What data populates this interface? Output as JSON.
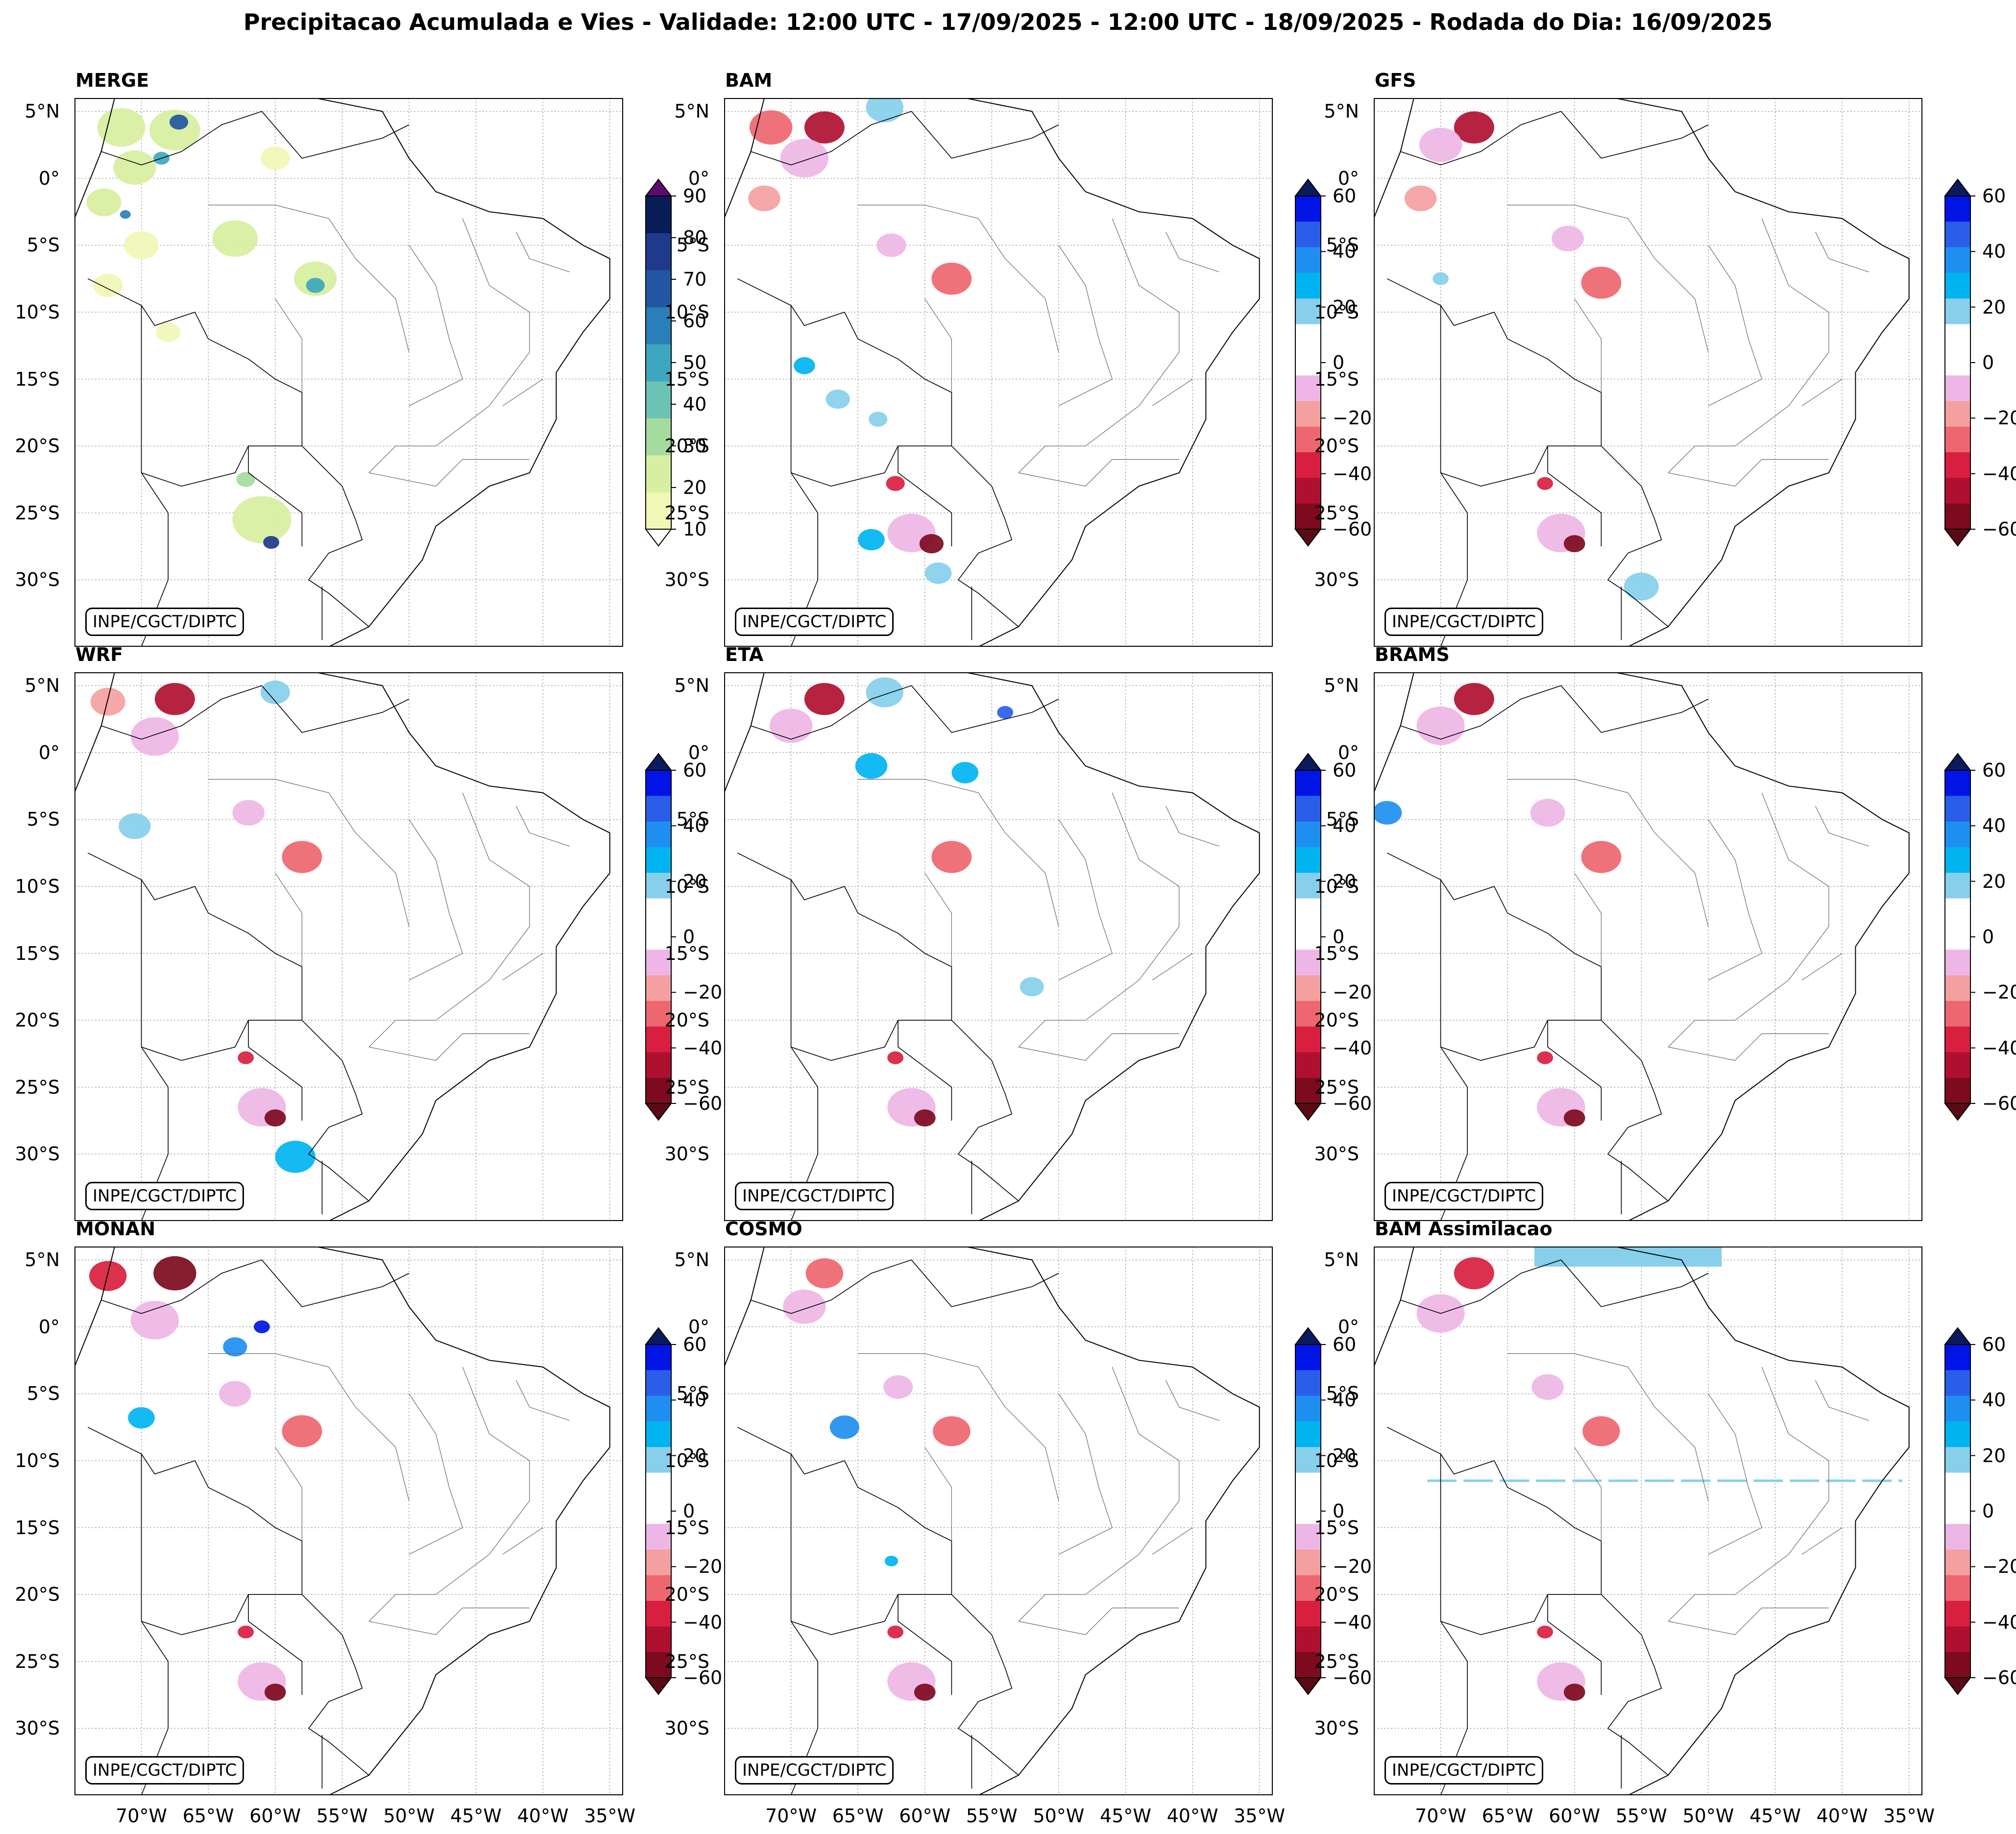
{
  "title": "Precipitacao Acumulada e Vies - Validade: 12:00 UTC - 17/09/2025 - 12:00 UTC - 18/09/2025 - Rodada do Dia: 16/09/2025",
  "credit": "INPE/CGCT/DIPTC",
  "lat_labels": [
    "5°N",
    "0°",
    "5°S",
    "10°S",
    "15°S",
    "20°S",
    "25°S",
    "30°S"
  ],
  "lat_values": [
    5,
    0,
    -5,
    -10,
    -15,
    -20,
    -25,
    -30
  ],
  "lon_labels": [
    "70°W",
    "65°W",
    "60°W",
    "55°W",
    "50°W",
    "45°W",
    "40°W",
    "35°W"
  ],
  "lon_values": [
    -70,
    -65,
    -60,
    -55,
    -50,
    -45,
    -40,
    -35
  ],
  "map_extent": {
    "lon_min": -75,
    "lon_max": -34,
    "lat_min": -35,
    "lat_max": 6
  },
  "colorbars": {
    "merge": {
      "ticks": [
        "10",
        "20",
        "30",
        "40",
        "50",
        "60",
        "70",
        "80",
        "90"
      ],
      "colors": [
        "#f1f7b5",
        "#d7efa0",
        "#a6dba0",
        "#6cc3b4",
        "#3ea7c0",
        "#2b7fb8",
        "#2256a3",
        "#1f3a8a",
        "#081d58"
      ],
      "arrow_top": "#5e0b6e",
      "arrow_bottom": "#ffffff"
    },
    "bias": {
      "ticks": [
        "60",
        "40",
        "20",
        "0",
        "−20",
        "−40",
        "−60"
      ],
      "colors": [
        "#0014e6",
        "#2a5ee8",
        "#1e8ff0",
        "#00b4f0",
        "#87cfeb",
        "#ffffff",
        "#ffffff",
        "#eeb6e6",
        "#f5a0a0",
        "#ee6670",
        "#d81f3f",
        "#b01030",
        "#7d0a1e"
      ],
      "arrow_top": "#0a1a5c",
      "arrow_bottom": "#5a0a14"
    }
  },
  "panels": [
    {
      "id": "merge",
      "title": "MERGE",
      "colorbar": "merge",
      "blobs": [
        {
          "lon": -71.5,
          "lat": 3.8,
          "r": 1.8,
          "color": "#d7efa0"
        },
        {
          "lon": -67.5,
          "lat": 3.6,
          "r": 1.9,
          "color": "#d7efa0"
        },
        {
          "lon": -67.2,
          "lat": 4.2,
          "r": 0.7,
          "color": "#2256a3"
        },
        {
          "lon": -70.5,
          "lat": 0.8,
          "r": 1.6,
          "color": "#d7efa0"
        },
        {
          "lon": -68.5,
          "lat": 1.5,
          "r": 0.6,
          "color": "#3ea7c0"
        },
        {
          "lon": -72.8,
          "lat": -1.8,
          "r": 1.3,
          "color": "#d7efa0"
        },
        {
          "lon": -71.2,
          "lat": -2.7,
          "r": 0.4,
          "color": "#2b7fb8"
        },
        {
          "lon": -60,
          "lat": 1.5,
          "r": 1.1,
          "color": "#f1f7b5"
        },
        {
          "lon": -63,
          "lat": -4.5,
          "r": 1.7,
          "color": "#d7efa0"
        },
        {
          "lon": -70,
          "lat": -5,
          "r": 1.3,
          "color": "#f1f7b5"
        },
        {
          "lon": -57,
          "lat": -7.5,
          "r": 1.6,
          "color": "#d7efa0"
        },
        {
          "lon": -57,
          "lat": -8,
          "r": 0.7,
          "color": "#3ea7c0"
        },
        {
          "lon": -72.5,
          "lat": -8,
          "r": 1.1,
          "color": "#f1f7b5"
        },
        {
          "lon": -68,
          "lat": -11.5,
          "r": 0.9,
          "color": "#f1f7b5"
        },
        {
          "lon": -61,
          "lat": -25.5,
          "r": 2.2,
          "color": "#d7efa0"
        },
        {
          "lon": -60.3,
          "lat": -27.2,
          "r": 0.6,
          "color": "#1f3a8a"
        },
        {
          "lon": -62.2,
          "lat": -22.5,
          "r": 0.7,
          "color": "#a6dba0"
        }
      ]
    },
    {
      "id": "bam",
      "title": "BAM",
      "colorbar": "bias",
      "blobs": [
        {
          "lon": -71.5,
          "lat": 3.8,
          "r": 1.6,
          "color": "#ee6670"
        },
        {
          "lon": -67.5,
          "lat": 3.8,
          "r": 1.5,
          "color": "#b01030"
        },
        {
          "lon": -69,
          "lat": 1.5,
          "r": 1.8,
          "color": "#eeb6e6"
        },
        {
          "lon": -72,
          "lat": -1.5,
          "r": 1.2,
          "color": "#f5a0a0"
        },
        {
          "lon": -63,
          "lat": 5.3,
          "r": 1.4,
          "color": "#87cfeb"
        },
        {
          "lon": -58,
          "lat": -7.5,
          "r": 1.5,
          "color": "#ee6670"
        },
        {
          "lon": -62.5,
          "lat": -5,
          "r": 1.1,
          "color": "#eeb6e6"
        },
        {
          "lon": -66.5,
          "lat": -16.5,
          "r": 0.9,
          "color": "#87cfeb"
        },
        {
          "lon": -63.5,
          "lat": -18,
          "r": 0.7,
          "color": "#87cfeb"
        },
        {
          "lon": -69,
          "lat": -14,
          "r": 0.8,
          "color": "#00b4f0"
        },
        {
          "lon": -61,
          "lat": -26.5,
          "r": 1.8,
          "color": "#eeb6e6"
        },
        {
          "lon": -59.5,
          "lat": -27.3,
          "r": 0.9,
          "color": "#7d0a1e"
        },
        {
          "lon": -62.2,
          "lat": -22.8,
          "r": 0.7,
          "color": "#d81f3f"
        },
        {
          "lon": -64,
          "lat": -27,
          "r": 1.0,
          "color": "#00b4f0"
        },
        {
          "lon": -59,
          "lat": -29.5,
          "r": 1.0,
          "color": "#87cfeb"
        }
      ]
    },
    {
      "id": "gfs",
      "title": "GFS",
      "colorbar": "bias",
      "blobs": [
        {
          "lon": -67.5,
          "lat": 3.8,
          "r": 1.5,
          "color": "#b01030"
        },
        {
          "lon": -70,
          "lat": 2.5,
          "r": 1.6,
          "color": "#eeb6e6"
        },
        {
          "lon": -71.5,
          "lat": -1.5,
          "r": 1.2,
          "color": "#f5a0a0"
        },
        {
          "lon": -58,
          "lat": -7.8,
          "r": 1.5,
          "color": "#ee6670"
        },
        {
          "lon": -60.5,
          "lat": -4.5,
          "r": 1.2,
          "color": "#eeb6e6"
        },
        {
          "lon": -70,
          "lat": -7.5,
          "r": 0.6,
          "color": "#87cfeb"
        },
        {
          "lon": -61,
          "lat": -26.5,
          "r": 1.8,
          "color": "#eeb6e6"
        },
        {
          "lon": -60,
          "lat": -27.3,
          "r": 0.8,
          "color": "#7d0a1e"
        },
        {
          "lon": -62.2,
          "lat": -22.8,
          "r": 0.6,
          "color": "#d81f3f"
        },
        {
          "lon": -55,
          "lat": -30.5,
          "r": 1.3,
          "color": "#87cfeb"
        }
      ]
    },
    {
      "id": "wrf",
      "title": "WRF",
      "colorbar": "bias",
      "blobs": [
        {
          "lon": -67.5,
          "lat": 4.0,
          "r": 1.5,
          "color": "#b01030"
        },
        {
          "lon": -72.5,
          "lat": 3.8,
          "r": 1.3,
          "color": "#f5a0a0"
        },
        {
          "lon": -69,
          "lat": 1.2,
          "r": 1.8,
          "color": "#eeb6e6"
        },
        {
          "lon": -60,
          "lat": 4.5,
          "r": 1.1,
          "color": "#87cfeb"
        },
        {
          "lon": -58,
          "lat": -7.8,
          "r": 1.5,
          "color": "#ee6670"
        },
        {
          "lon": -62,
          "lat": -4.5,
          "r": 1.2,
          "color": "#eeb6e6"
        },
        {
          "lon": -70.5,
          "lat": -5.5,
          "r": 1.2,
          "color": "#87cfeb"
        },
        {
          "lon": -61,
          "lat": -26.5,
          "r": 1.8,
          "color": "#eeb6e6"
        },
        {
          "lon": -60,
          "lat": -27.3,
          "r": 0.8,
          "color": "#7d0a1e"
        },
        {
          "lon": -62.2,
          "lat": -22.8,
          "r": 0.6,
          "color": "#d81f3f"
        },
        {
          "lon": -58.5,
          "lat": -30.2,
          "r": 1.5,
          "color": "#00b4f0"
        }
      ]
    },
    {
      "id": "eta",
      "title": "ETA",
      "colorbar": "bias",
      "blobs": [
        {
          "lon": -67.5,
          "lat": 4.0,
          "r": 1.5,
          "color": "#b01030"
        },
        {
          "lon": -70,
          "lat": 2.0,
          "r": 1.6,
          "color": "#eeb6e6"
        },
        {
          "lon": -63,
          "lat": 4.5,
          "r": 1.4,
          "color": "#87cfeb"
        },
        {
          "lon": -54,
          "lat": 3.0,
          "r": 0.6,
          "color": "#2a5ee8"
        },
        {
          "lon": -64,
          "lat": -1.0,
          "r": 1.2,
          "color": "#00b4f0"
        },
        {
          "lon": -57,
          "lat": -1.5,
          "r": 1.0,
          "color": "#00b4f0"
        },
        {
          "lon": -58,
          "lat": -7.8,
          "r": 1.5,
          "color": "#ee6670"
        },
        {
          "lon": -52,
          "lat": -17.5,
          "r": 0.9,
          "color": "#87cfeb"
        },
        {
          "lon": -61,
          "lat": -26.5,
          "r": 1.8,
          "color": "#eeb6e6"
        },
        {
          "lon": -60,
          "lat": -27.3,
          "r": 0.8,
          "color": "#7d0a1e"
        },
        {
          "lon": -62.2,
          "lat": -22.8,
          "r": 0.6,
          "color": "#d81f3f"
        }
      ]
    },
    {
      "id": "brams",
      "title": "BRAMS",
      "colorbar": "bias",
      "blobs": [
        {
          "lon": -67.5,
          "lat": 4.0,
          "r": 1.5,
          "color": "#b01030"
        },
        {
          "lon": -70,
          "lat": 2.0,
          "r": 1.8,
          "color": "#eeb6e6"
        },
        {
          "lon": -74,
          "lat": -4.5,
          "r": 1.1,
          "color": "#1e8ff0"
        },
        {
          "lon": -58,
          "lat": -7.8,
          "r": 1.5,
          "color": "#ee6670"
        },
        {
          "lon": -62,
          "lat": -4.5,
          "r": 1.3,
          "color": "#eeb6e6"
        },
        {
          "lon": -61,
          "lat": -26.5,
          "r": 1.8,
          "color": "#eeb6e6"
        },
        {
          "lon": -60,
          "lat": -27.3,
          "r": 0.8,
          "color": "#7d0a1e"
        },
        {
          "lon": -62.2,
          "lat": -22.8,
          "r": 0.6,
          "color": "#d81f3f"
        }
      ]
    },
    {
      "id": "monan",
      "title": "MONAN",
      "colorbar": "bias",
      "blobs": [
        {
          "lon": -67.5,
          "lat": 4.0,
          "r": 1.6,
          "color": "#7d0a1e"
        },
        {
          "lon": -72.5,
          "lat": 3.8,
          "r": 1.4,
          "color": "#d81f3f"
        },
        {
          "lon": -69,
          "lat": 0.5,
          "r": 1.8,
          "color": "#eeb6e6"
        },
        {
          "lon": -63,
          "lat": -1.5,
          "r": 0.9,
          "color": "#1e8ff0"
        },
        {
          "lon": -61,
          "lat": 0.0,
          "r": 0.6,
          "color": "#0014e6"
        },
        {
          "lon": -58,
          "lat": -7.8,
          "r": 1.5,
          "color": "#ee6670"
        },
        {
          "lon": -63,
          "lat": -5.0,
          "r": 1.2,
          "color": "#eeb6e6"
        },
        {
          "lon": -70,
          "lat": -6.8,
          "r": 1.0,
          "color": "#00b4f0"
        },
        {
          "lon": -61,
          "lat": -26.5,
          "r": 1.8,
          "color": "#eeb6e6"
        },
        {
          "lon": -60,
          "lat": -27.3,
          "r": 0.8,
          "color": "#7d0a1e"
        },
        {
          "lon": -62.2,
          "lat": -22.8,
          "r": 0.6,
          "color": "#d81f3f"
        }
      ]
    },
    {
      "id": "cosmo",
      "title": "COSMO",
      "colorbar": "bias",
      "blobs": [
        {
          "lon": -67.5,
          "lat": 4.0,
          "r": 1.4,
          "color": "#ee6670"
        },
        {
          "lon": -69,
          "lat": 1.5,
          "r": 1.6,
          "color": "#eeb6e6"
        },
        {
          "lon": -66,
          "lat": -7.5,
          "r": 1.1,
          "color": "#1e8ff0"
        },
        {
          "lon": -58,
          "lat": -7.8,
          "r": 1.4,
          "color": "#ee6670"
        },
        {
          "lon": -62,
          "lat": -4.5,
          "r": 1.1,
          "color": "#eeb6e6"
        },
        {
          "lon": -62.5,
          "lat": -17.5,
          "r": 0.5,
          "color": "#00b4f0"
        },
        {
          "lon": -61,
          "lat": -26.5,
          "r": 1.8,
          "color": "#eeb6e6"
        },
        {
          "lon": -60,
          "lat": -27.3,
          "r": 0.8,
          "color": "#7d0a1e"
        },
        {
          "lon": -62.2,
          "lat": -22.8,
          "r": 0.6,
          "color": "#d81f3f"
        }
      ]
    },
    {
      "id": "bam-assim",
      "title": "BAM Assimilacao",
      "colorbar": "bias",
      "blobs": [
        {
          "lon": -67.5,
          "lat": 4.0,
          "r": 1.5,
          "color": "#d81f3f"
        },
        {
          "lon": -70,
          "lat": 1.0,
          "r": 1.8,
          "color": "#eeb6e6"
        },
        {
          "lon": -58,
          "lat": -7.8,
          "r": 1.4,
          "color": "#ee6670"
        },
        {
          "lon": -62,
          "lat": -4.5,
          "r": 1.2,
          "color": "#eeb6e6"
        },
        {
          "lon": -61,
          "lat": -26.5,
          "r": 1.8,
          "color": "#eeb6e6"
        },
        {
          "lon": -60,
          "lat": -27.3,
          "r": 0.8,
          "color": "#7d0a1e"
        },
        {
          "lon": -62.2,
          "lat": -22.8,
          "r": 0.6,
          "color": "#d81f3f"
        }
      ]
    }
  ]
}
